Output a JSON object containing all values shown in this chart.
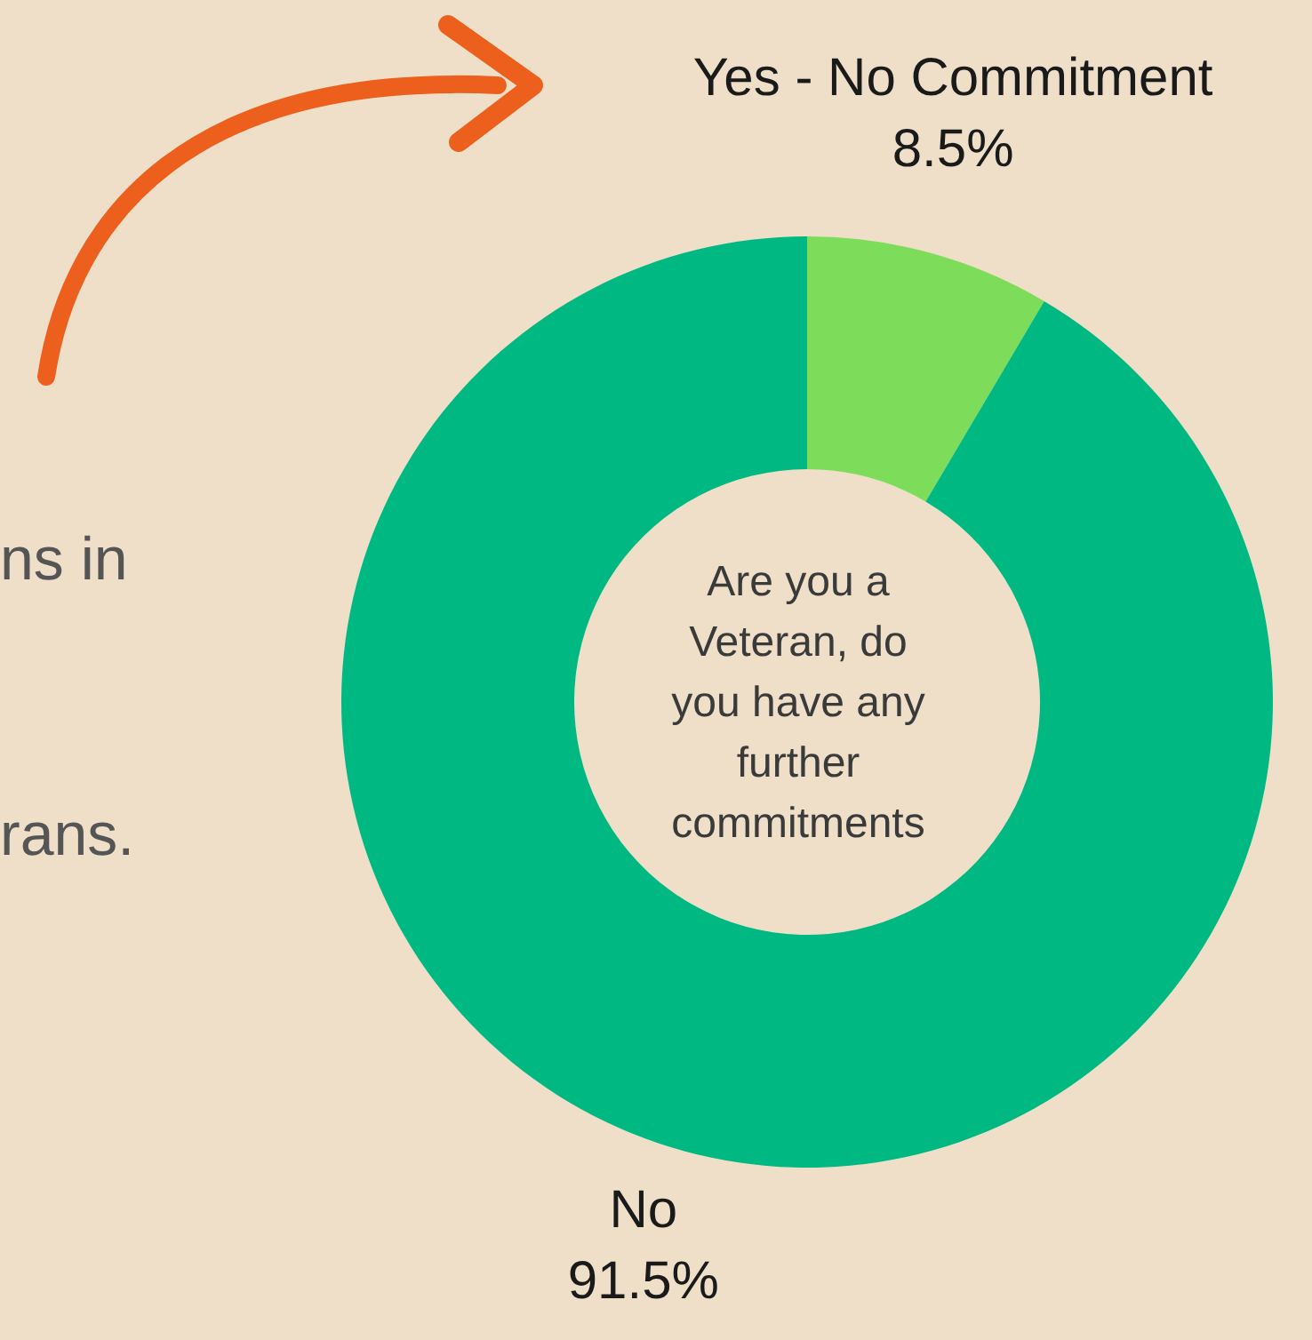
{
  "chart_data": {
    "type": "donut",
    "title": "Are you a Veteran, do you have any further commitments",
    "categories": [
      "Yes - No Commitment",
      "No"
    ],
    "values": [
      8.5,
      91.5
    ],
    "colors": [
      "#7ddc5a",
      "#00b982"
    ],
    "value_labels": [
      "8.5%",
      "91.5%"
    ],
    "annotations": [
      "ns in",
      "rans."
    ]
  }
}
